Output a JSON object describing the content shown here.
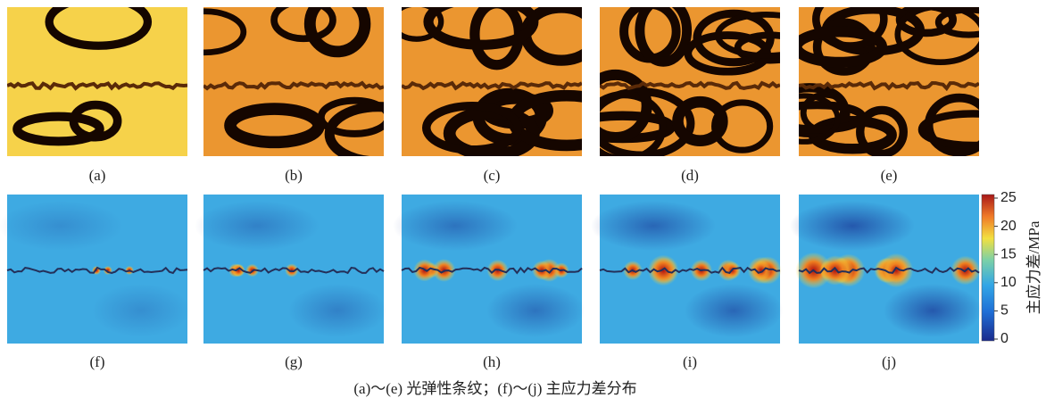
{
  "figure": {
    "panels_top": [
      "(a)",
      "(b)",
      "(c)",
      "(d)",
      "(e)"
    ],
    "panels_bottom": [
      "(f)",
      "(g)",
      "(h)",
      "(i)",
      "(j)"
    ],
    "caption": "(a)～(e) 光弹性条纹；(f)～(j) 主应力差分布",
    "colorbar": {
      "label": "主应力差/MPa",
      "lim": [
        0,
        25
      ],
      "ticks": [
        0,
        5,
        10,
        15,
        20,
        25
      ]
    }
  }
}
